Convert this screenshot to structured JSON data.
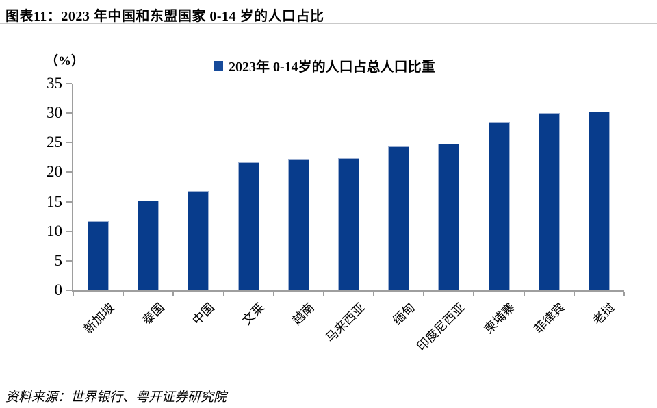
{
  "header": {
    "title": "图表11：2023 年中国和东盟国家 0-14 岁的人口占比"
  },
  "footer": {
    "source": "资料来源：世界银行、粤开证券研究院"
  },
  "chart_data": {
    "type": "bar",
    "title": "2023年 0-14岁的人口占总人口比重",
    "unit_label": "（%）",
    "categories": [
      "新加坡",
      "泰国",
      "中国",
      "文莱",
      "越南",
      "马来西亚",
      "缅甸",
      "印度尼西亚",
      "柬埔寨",
      "菲律宾",
      "老挝"
    ],
    "values": [
      11.7,
      15.2,
      16.8,
      21.7,
      22.2,
      22.4,
      24.3,
      24.8,
      28.5,
      30.0,
      30.2
    ],
    "xlabel": "",
    "ylabel": "（%）",
    "ylim": [
      0,
      35
    ],
    "yticks": [
      0,
      5,
      10,
      15,
      20,
      25,
      30,
      35
    ],
    "grid": false,
    "legend_position": "top",
    "legend": [
      {
        "label": "2023年 0-14岁的人口占总人口比重",
        "color": "#164a9a"
      }
    ],
    "bar_color": "#083c8c",
    "bar_border_color": "#9db0d2",
    "axis_color": "#9e9e9e"
  }
}
